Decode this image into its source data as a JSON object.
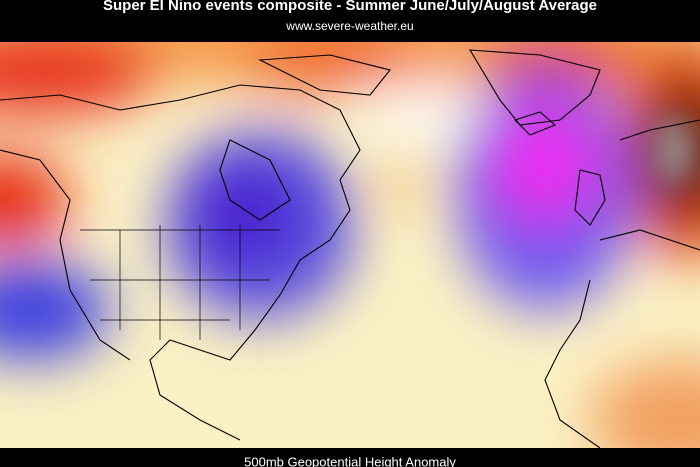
{
  "title": "Super El Nino events composite - Summer June/July/August Average",
  "subtitle": "www.severe-weather.eu",
  "footer": "500mb Geopotential Height Anomaly"
}
